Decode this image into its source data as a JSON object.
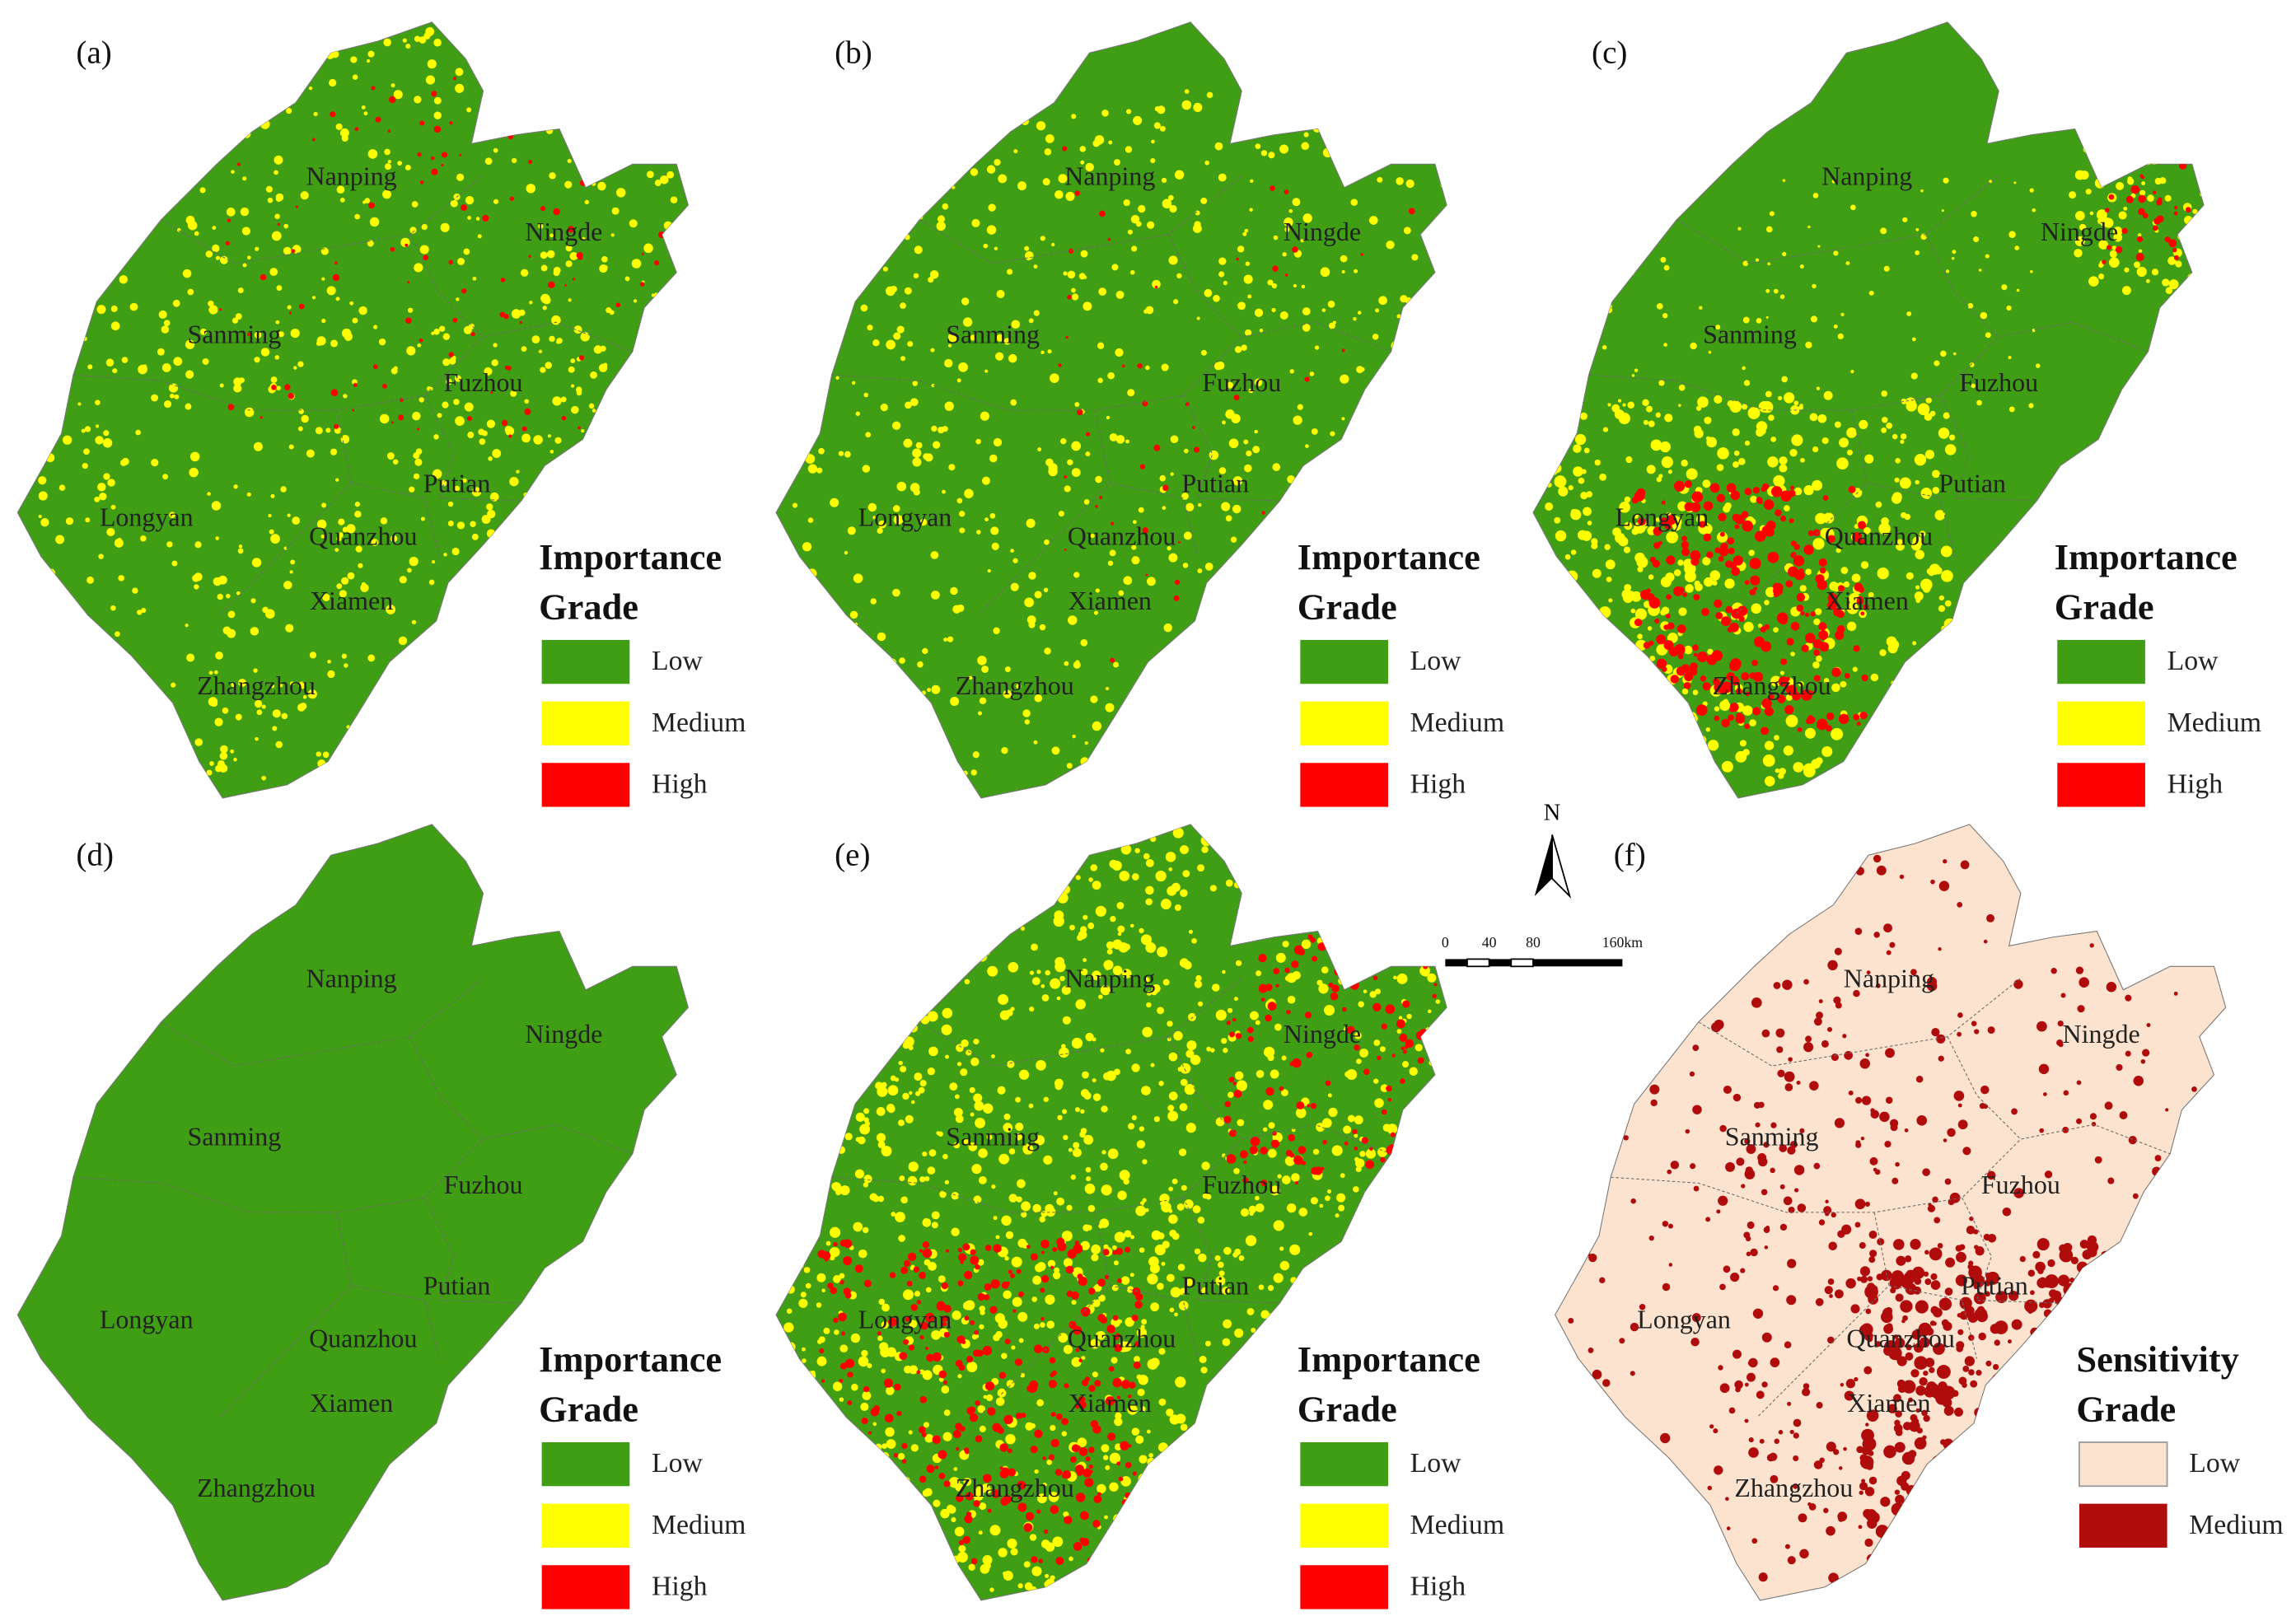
{
  "panels": [
    {
      "label": "(a)",
      "cities": [
        "Nanping",
        "Ningde",
        "Sanming",
        "Fuzhou",
        "Putian",
        "Longyan",
        "Quanzhou",
        "Xiamen",
        "Zhangzhou"
      ],
      "legend": {
        "title": [
          "Importance",
          "Grade"
        ],
        "items": [
          {
            "label": "Low",
            "color": "#3f9e14"
          },
          {
            "label": "Medium",
            "color": "#ffff00"
          },
          {
            "label": "High",
            "color": "#ff0000"
          }
        ]
      }
    },
    {
      "label": "(b)",
      "cities": [
        "Nanping",
        "Ningde",
        "Sanming",
        "Fuzhou",
        "Putian",
        "Longyan",
        "Quanzhou",
        "Xiamen",
        "Zhangzhou"
      ],
      "legend": {
        "title": [
          "Importance",
          "Grade"
        ],
        "items": [
          {
            "label": "Low",
            "color": "#3f9e14"
          },
          {
            "label": "Medium",
            "color": "#ffff00"
          },
          {
            "label": "High",
            "color": "#ff0000"
          }
        ]
      }
    },
    {
      "label": "(c)",
      "cities": [
        "Nanping",
        "Ningde",
        "Sanming",
        "Fuzhou",
        "Putian",
        "Longyan",
        "Quanzhou",
        "Xiamen",
        "Zhangzhou"
      ],
      "legend": {
        "title": [
          "Importance",
          "Grade"
        ],
        "items": [
          {
            "label": "Low",
            "color": "#3f9e14"
          },
          {
            "label": "Medium",
            "color": "#ffff00"
          },
          {
            "label": "High",
            "color": "#ff0000"
          }
        ]
      }
    },
    {
      "label": "(d)",
      "cities": [
        "Nanping",
        "Ningde",
        "Sanming",
        "Fuzhou",
        "Putian",
        "Longyan",
        "Quanzhou",
        "Xiamen",
        "Zhangzhou"
      ],
      "legend": {
        "title": [
          "Importance",
          "Grade"
        ],
        "items": [
          {
            "label": "Low",
            "color": "#3f9e14"
          },
          {
            "label": "Medium",
            "color": "#ffff00"
          },
          {
            "label": "High",
            "color": "#ff0000"
          }
        ]
      }
    },
    {
      "label": "(e)",
      "cities": [
        "Nanping",
        "Ningde",
        "Sanming",
        "Fuzhou",
        "Putian",
        "Longyan",
        "Quanzhou",
        "Xiamen",
        "Zhangzhou"
      ],
      "legend": {
        "title": [
          "Importance",
          "Grade"
        ],
        "items": [
          {
            "label": "Low",
            "color": "#3f9e14"
          },
          {
            "label": "Medium",
            "color": "#ffff00"
          },
          {
            "label": "High",
            "color": "#ff0000"
          }
        ]
      }
    },
    {
      "label": "(f)",
      "cities": [
        "Nanping",
        "Ningde",
        "Sanming",
        "Fuzhou",
        "Putian",
        "Longyan",
        "Quanzhou",
        "Xiamen",
        "Zhangzhou"
      ],
      "legend": {
        "title": [
          "Sensitivity",
          "Grade"
        ],
        "items": [
          {
            "label": "Low",
            "color": "#fbe3cf"
          },
          {
            "label": "Medium",
            "color": "#b10c0c"
          }
        ]
      }
    }
  ],
  "north_arrow": "N",
  "scale_bar": [
    "0",
    "40",
    "80",
    "160km"
  ]
}
